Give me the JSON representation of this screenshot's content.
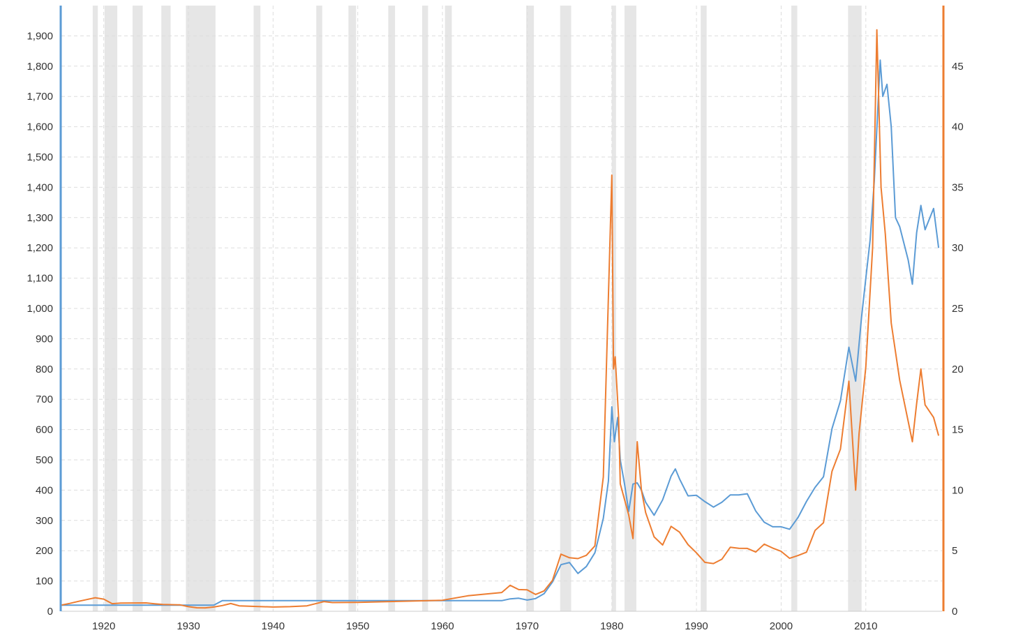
{
  "chart_data": {
    "type": "line",
    "title": "",
    "xlabel": "",
    "ylabel_left": "",
    "ylabel_right": "",
    "x_range": [
      1915,
      2019
    ],
    "x_ticks": [
      1920,
      1930,
      1940,
      1950,
      1960,
      1970,
      1980,
      1990,
      2000,
      2010
    ],
    "x_tick_labels": [
      "1920",
      "1930",
      "1940",
      "1950",
      "1960",
      "1970",
      "1980",
      "1990",
      "2000",
      "2010"
    ],
    "left_axis": {
      "min": 0,
      "max": 2000,
      "color": "#5b9bd5",
      "ticks": [
        0,
        100,
        200,
        300,
        400,
        500,
        600,
        700,
        800,
        900,
        1000,
        1100,
        1200,
        1300,
        1400,
        1500,
        1600,
        1700,
        1800,
        1900
      ],
      "tick_labels": [
        "0",
        "100",
        "200",
        "300",
        "400",
        "500",
        "600",
        "700",
        "800",
        "900",
        "1,000",
        "1,100",
        "1,200",
        "1,300",
        "1,400",
        "1,500",
        "1,600",
        "1,700",
        "1,800",
        "1,900"
      ]
    },
    "right_axis": {
      "min": 0,
      "max": 50,
      "color": "#ed7d31",
      "ticks": [
        0,
        5,
        10,
        15,
        20,
        25,
        30,
        35,
        40,
        45
      ],
      "tick_labels": [
        "0",
        "5",
        "10",
        "15",
        "20",
        "25",
        "30",
        "35",
        "40",
        "45"
      ]
    },
    "grid": true,
    "legend": "none",
    "shaded_periods": [
      [
        1918.7,
        1919.3
      ],
      [
        1920.1,
        1921.6
      ],
      [
        1923.4,
        1924.6
      ],
      [
        1926.8,
        1927.9
      ],
      [
        1929.7,
        1933.2
      ],
      [
        1937.7,
        1938.5
      ],
      [
        1945.1,
        1945.8
      ],
      [
        1948.9,
        1949.8
      ],
      [
        1953.6,
        1954.4
      ],
      [
        1957.6,
        1958.3
      ],
      [
        1960.3,
        1961.1
      ],
      [
        1969.9,
        1970.8
      ],
      [
        1973.9,
        1975.2
      ],
      [
        1980.0,
        1980.5
      ],
      [
        1981.5,
        1982.9
      ],
      [
        1990.5,
        1991.2
      ],
      [
        2001.2,
        2001.9
      ],
      [
        2007.9,
        2009.5
      ]
    ],
    "series": [
      {
        "axis": "left",
        "color": "#5b9bd5",
        "points": [
          [
            1915,
            20
          ],
          [
            1933,
            20
          ],
          [
            1934,
            35
          ],
          [
            1967,
            35
          ],
          [
            1968,
            41
          ],
          [
            1969,
            43
          ],
          [
            1970,
            37
          ],
          [
            1971,
            42
          ],
          [
            1972,
            58
          ],
          [
            1973,
            97
          ],
          [
            1974,
            154
          ],
          [
            1975,
            161
          ],
          [
            1976,
            125
          ],
          [
            1977,
            148
          ],
          [
            1978,
            193
          ],
          [
            1979,
            307
          ],
          [
            1979.6,
            430
          ],
          [
            1980.0,
            675
          ],
          [
            1980.3,
            560
          ],
          [
            1980.7,
            640
          ],
          [
            1981.0,
            500
          ],
          [
            1981.5,
            420
          ],
          [
            1982.0,
            330
          ],
          [
            1982.5,
            420
          ],
          [
            1983.0,
            424
          ],
          [
            1983.5,
            400
          ],
          [
            1984.0,
            360
          ],
          [
            1985.0,
            317
          ],
          [
            1986.0,
            368
          ],
          [
            1987.0,
            446
          ],
          [
            1987.5,
            470
          ],
          [
            1988.0,
            437
          ],
          [
            1989.0,
            381
          ],
          [
            1990.0,
            383
          ],
          [
            1991.0,
            362
          ],
          [
            1992.0,
            344
          ],
          [
            1993.0,
            360
          ],
          [
            1994.0,
            384
          ],
          [
            1995.0,
            384
          ],
          [
            1996.0,
            388
          ],
          [
            1997.0,
            331
          ],
          [
            1998.0,
            294
          ],
          [
            1999.0,
            279
          ],
          [
            2000.0,
            279
          ],
          [
            2001.0,
            271
          ],
          [
            2002.0,
            310
          ],
          [
            2003.0,
            363
          ],
          [
            2004.0,
            409
          ],
          [
            2005.0,
            444
          ],
          [
            2006.0,
            603
          ],
          [
            2007.0,
            695
          ],
          [
            2008.0,
            872
          ],
          [
            2008.8,
            760
          ],
          [
            2009.5,
            972
          ],
          [
            2010.0,
            1100
          ],
          [
            2010.5,
            1225
          ],
          [
            2011.0,
            1420
          ],
          [
            2011.7,
            1820
          ],
          [
            2012.0,
            1700
          ],
          [
            2012.5,
            1740
          ],
          [
            2013.0,
            1600
          ],
          [
            2013.5,
            1300
          ],
          [
            2014.0,
            1270
          ],
          [
            2015.0,
            1160
          ],
          [
            2015.5,
            1080
          ],
          [
            2016.0,
            1250
          ],
          [
            2016.5,
            1340
          ],
          [
            2017.0,
            1260
          ],
          [
            2018.0,
            1330
          ],
          [
            2018.6,
            1200
          ]
        ]
      },
      {
        "axis": "right",
        "color": "#ed7d31",
        "points": [
          [
            1915,
            0.51
          ],
          [
            1916,
            0.65
          ],
          [
            1917,
            0.82
          ],
          [
            1918,
            0.97
          ],
          [
            1919,
            1.12
          ],
          [
            1920,
            1.0
          ],
          [
            1921,
            0.63
          ],
          [
            1922,
            0.68
          ],
          [
            1925,
            0.69
          ],
          [
            1926,
            0.62
          ],
          [
            1927,
            0.56
          ],
          [
            1929,
            0.53
          ],
          [
            1930,
            0.38
          ],
          [
            1931,
            0.29
          ],
          [
            1932,
            0.28
          ],
          [
            1933,
            0.35
          ],
          [
            1934,
            0.47
          ],
          [
            1935,
            0.64
          ],
          [
            1936,
            0.45
          ],
          [
            1940,
            0.35
          ],
          [
            1942,
            0.38
          ],
          [
            1944,
            0.45
          ],
          [
            1946,
            0.8
          ],
          [
            1947,
            0.72
          ],
          [
            1950,
            0.74
          ],
          [
            1960,
            0.91
          ],
          [
            1963,
            1.28
          ],
          [
            1967,
            1.55
          ],
          [
            1968,
            2.14
          ],
          [
            1969,
            1.79
          ],
          [
            1970,
            1.77
          ],
          [
            1971,
            1.39
          ],
          [
            1972,
            1.68
          ],
          [
            1973,
            2.56
          ],
          [
            1974,
            4.71
          ],
          [
            1975,
            4.42
          ],
          [
            1976,
            4.35
          ],
          [
            1977,
            4.62
          ],
          [
            1978,
            5.4
          ],
          [
            1979,
            11.09
          ],
          [
            1980.0,
            36.0
          ],
          [
            1980.2,
            20.0
          ],
          [
            1980.4,
            21.0
          ],
          [
            1980.8,
            16.0
          ],
          [
            1981.0,
            10.52
          ],
          [
            1982.0,
            7.95
          ],
          [
            1982.5,
            6.0
          ],
          [
            1983.0,
            14.0
          ],
          [
            1983.5,
            10.0
          ],
          [
            1984.0,
            8.14
          ],
          [
            1985.0,
            6.14
          ],
          [
            1986.0,
            5.47
          ],
          [
            1987.0,
            7.01
          ],
          [
            1988.0,
            6.53
          ],
          [
            1989.0,
            5.5
          ],
          [
            1990.0,
            4.82
          ],
          [
            1991.0,
            4.04
          ],
          [
            1992.0,
            3.94
          ],
          [
            1993.0,
            4.3
          ],
          [
            1994.0,
            5.29
          ],
          [
            1995.0,
            5.2
          ],
          [
            1996.0,
            5.19
          ],
          [
            1997.0,
            4.89
          ],
          [
            1998.0,
            5.54
          ],
          [
            1999.0,
            5.22
          ],
          [
            2000.0,
            4.95
          ],
          [
            2001.0,
            4.37
          ],
          [
            2002.0,
            4.6
          ],
          [
            2003.0,
            4.88
          ],
          [
            2004.0,
            6.67
          ],
          [
            2005.0,
            7.31
          ],
          [
            2006.0,
            11.55
          ],
          [
            2007.0,
            13.38
          ],
          [
            2008.0,
            19.0
          ],
          [
            2008.8,
            10.0
          ],
          [
            2009.2,
            14.67
          ],
          [
            2010.0,
            20.19
          ],
          [
            2010.8,
            30.0
          ],
          [
            2011.3,
            48.0
          ],
          [
            2011.8,
            35.0
          ],
          [
            2012.3,
            31.15
          ],
          [
            2013.0,
            23.79
          ],
          [
            2014.0,
            19.08
          ],
          [
            2015.0,
            15.68
          ],
          [
            2015.5,
            14.0
          ],
          [
            2016.0,
            17.14
          ],
          [
            2016.5,
            20.0
          ],
          [
            2017.0,
            17.04
          ],
          [
            2018.0,
            16.0
          ],
          [
            2018.6,
            14.5
          ]
        ]
      }
    ]
  }
}
